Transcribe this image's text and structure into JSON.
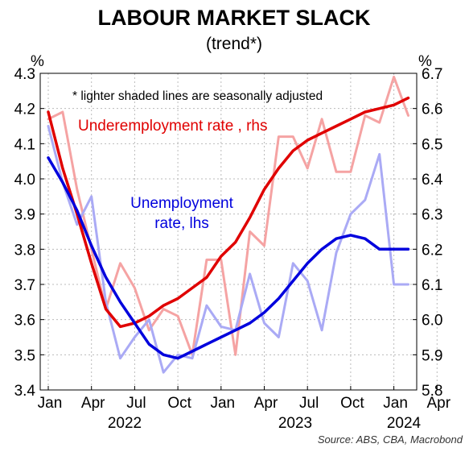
{
  "chart_data": {
    "type": "line",
    "title": "LABOUR MARKET SLACK",
    "subtitle": "(trend*)",
    "note": "*  lighter shaded lines are seasonally adjusted",
    "source": "Source: ABS, CBA, Macrobond",
    "left_axis": {
      "unit": "%",
      "range": [
        3.4,
        4.3
      ],
      "ticks": [
        "3.4",
        "3.5",
        "3.6",
        "3.7",
        "3.8",
        "3.9",
        "4.0",
        "4.1",
        "4.2",
        "4.3"
      ]
    },
    "right_axis": {
      "unit": "%",
      "range": [
        5.8,
        6.7
      ],
      "ticks": [
        "5.8",
        "5.9",
        "6.0",
        "6.1",
        "6.2",
        "6.3",
        "6.4",
        "6.5",
        "6.6",
        "6.7"
      ]
    },
    "x_ticks": [
      "Jan",
      "Apr",
      "Jul",
      "Oct",
      "Jan",
      "Apr",
      "Jul",
      "Oct",
      "Jan",
      "Apr"
    ],
    "year_labels": [
      "2022",
      "2023",
      "2024"
    ],
    "grid": true,
    "series": [
      {
        "name": "Underemployment rate , rhs",
        "axis": "right",
        "kind": "seasonally adjusted",
        "color": "#f5a3a3",
        "x": [
          "2022-01",
          "2022-02",
          "2022-03",
          "2022-04",
          "2022-05",
          "2022-06",
          "2022-07",
          "2022-08",
          "2022-09",
          "2022-10",
          "2022-11",
          "2022-12",
          "2023-01",
          "2023-02",
          "2023-03",
          "2023-04",
          "2023-05",
          "2023-06",
          "2023-07",
          "2023-08",
          "2023-09",
          "2023-10",
          "2023-11",
          "2023-12",
          "2024-01",
          "2024-02"
        ],
        "y": [
          6.57,
          6.59,
          6.37,
          6.2,
          6.03,
          6.16,
          6.09,
          5.97,
          6.03,
          6.01,
          5.9,
          6.17,
          6.17,
          5.9,
          6.25,
          6.21,
          6.52,
          6.52,
          6.43,
          6.57,
          6.42,
          6.42,
          6.58,
          6.56,
          6.69,
          6.58
        ]
      },
      {
        "name": "Underemployment rate , rhs",
        "axis": "right",
        "kind": "trend",
        "color": "#e00000",
        "x": [
          "2022-01",
          "2022-02",
          "2022-03",
          "2022-04",
          "2022-05",
          "2022-06",
          "2022-07",
          "2022-08",
          "2022-09",
          "2022-10",
          "2022-11",
          "2022-12",
          "2023-01",
          "2023-02",
          "2023-03",
          "2023-04",
          "2023-05",
          "2023-06",
          "2023-07",
          "2023-08",
          "2023-09",
          "2023-10",
          "2023-11",
          "2023-12",
          "2024-01",
          "2024-02"
        ],
        "y": [
          6.59,
          6.43,
          6.3,
          6.16,
          6.03,
          5.98,
          5.99,
          6.01,
          6.04,
          6.06,
          6.09,
          6.12,
          6.18,
          6.22,
          6.29,
          6.37,
          6.43,
          6.48,
          6.51,
          6.53,
          6.55,
          6.57,
          6.59,
          6.6,
          6.61,
          6.63
        ]
      },
      {
        "name": "Unemployment rate, lhs",
        "axis": "left",
        "kind": "seasonally adjusted",
        "color": "#aaaaf5",
        "x": [
          "2022-01",
          "2022-02",
          "2022-03",
          "2022-04",
          "2022-05",
          "2022-06",
          "2022-07",
          "2022-08",
          "2022-09",
          "2022-10",
          "2022-11",
          "2022-12",
          "2023-01",
          "2023-02",
          "2023-03",
          "2023-04",
          "2023-05",
          "2023-06",
          "2023-07",
          "2023-08",
          "2023-09",
          "2023-10",
          "2023-11",
          "2023-12",
          "2024-01",
          "2024-02"
        ],
        "y": [
          4.15,
          3.99,
          3.87,
          3.95,
          3.65,
          3.49,
          3.55,
          3.6,
          3.45,
          3.5,
          3.49,
          3.64,
          3.58,
          3.57,
          3.73,
          3.59,
          3.55,
          3.76,
          3.71,
          3.57,
          3.79,
          3.9,
          3.94,
          4.07,
          3.7,
          3.7
        ]
      },
      {
        "name": "Unemployment rate, lhs",
        "axis": "left",
        "kind": "trend",
        "color": "#0000dd",
        "x": [
          "2022-01",
          "2022-02",
          "2022-03",
          "2022-04",
          "2022-05",
          "2022-06",
          "2022-07",
          "2022-08",
          "2022-09",
          "2022-10",
          "2022-11",
          "2022-12",
          "2023-01",
          "2023-02",
          "2023-03",
          "2023-04",
          "2023-05",
          "2023-06",
          "2023-07",
          "2023-08",
          "2023-09",
          "2023-10",
          "2023-11",
          "2023-12",
          "2024-01",
          "2024-02"
        ],
        "y": [
          4.06,
          3.99,
          3.91,
          3.81,
          3.72,
          3.65,
          3.59,
          3.53,
          3.5,
          3.49,
          3.51,
          3.53,
          3.55,
          3.57,
          3.59,
          3.62,
          3.66,
          3.71,
          3.76,
          3.8,
          3.83,
          3.84,
          3.83,
          3.8,
          3.8,
          3.8
        ]
      }
    ],
    "labels": {
      "underemployment": "Underemployment rate , rhs",
      "unemployment_line1": "Unemployment",
      "unemployment_line2": "rate, lhs"
    }
  }
}
